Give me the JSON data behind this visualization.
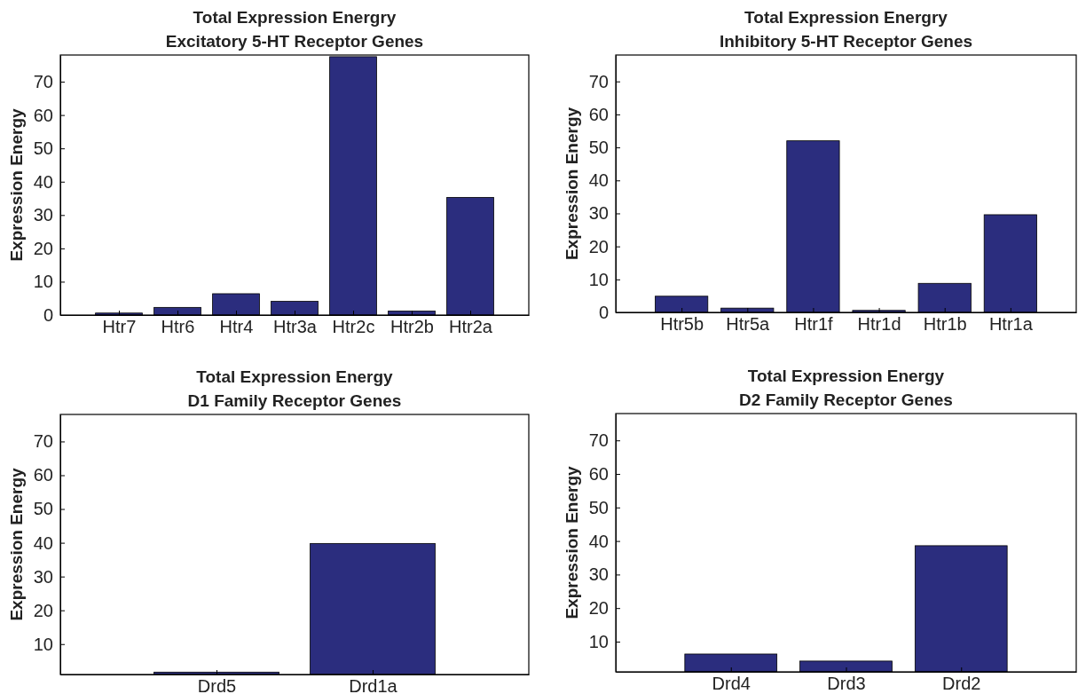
{
  "chart_data": [
    {
      "type": "bar",
      "title": "Total Expression Energry",
      "subtitle": "Excitatory 5-HT Receptor Genes",
      "ylabel": "Expression Energy",
      "categories": [
        "Htr7",
        "Htr6",
        "Htr4",
        "Htr3a",
        "Htr2c",
        "Htr2b",
        "Htr2a"
      ],
      "values": [
        0.6,
        2.3,
        6.4,
        4.1,
        77.5,
        1.2,
        35.3
      ],
      "color": "#2b2d7e",
      "ylim": [
        0,
        78
      ],
      "yticks": [
        0,
        10,
        20,
        30,
        40,
        50,
        60,
        70
      ]
    },
    {
      "type": "bar",
      "title": "Total Expression Energry",
      "subtitle": "Inhibitory 5-HT Receptor Genes",
      "ylabel": "Expression Energy",
      "categories": [
        "Htr5b",
        "Htr5a",
        "Htr1f",
        "Htr1d",
        "Htr1b",
        "Htr1a"
      ],
      "values": [
        4.9,
        1.3,
        52,
        0.6,
        8.8,
        29.6
      ],
      "color": "#2b2d7e",
      "ylim": [
        0,
        78
      ],
      "yticks": [
        0,
        10,
        20,
        30,
        40,
        50,
        60,
        70
      ]
    },
    {
      "type": "bar",
      "title": "Total Expression Energy",
      "subtitle": "D1 Family Receptor Genes",
      "ylabel": "Expression Energy",
      "categories": [
        "Drd5",
        "Drd1a"
      ],
      "values": [
        1.7,
        39.8
      ],
      "color": "#2b2d7e",
      "ylim": [
        1,
        78
      ],
      "yticks": [
        10,
        20,
        30,
        40,
        50,
        60,
        70
      ]
    },
    {
      "type": "bar",
      "title": "Total Expression Energy",
      "subtitle": "D2 Family Receptor Genes",
      "ylabel": "Expression Energy",
      "categories": [
        "Drd4",
        "Drd3",
        "Drd2"
      ],
      "values": [
        6.3,
        4.2,
        38.6
      ],
      "color": "#2b2d7e",
      "ylim": [
        1,
        78
      ],
      "yticks": [
        10,
        20,
        30,
        40,
        50,
        60,
        70
      ]
    }
  ]
}
